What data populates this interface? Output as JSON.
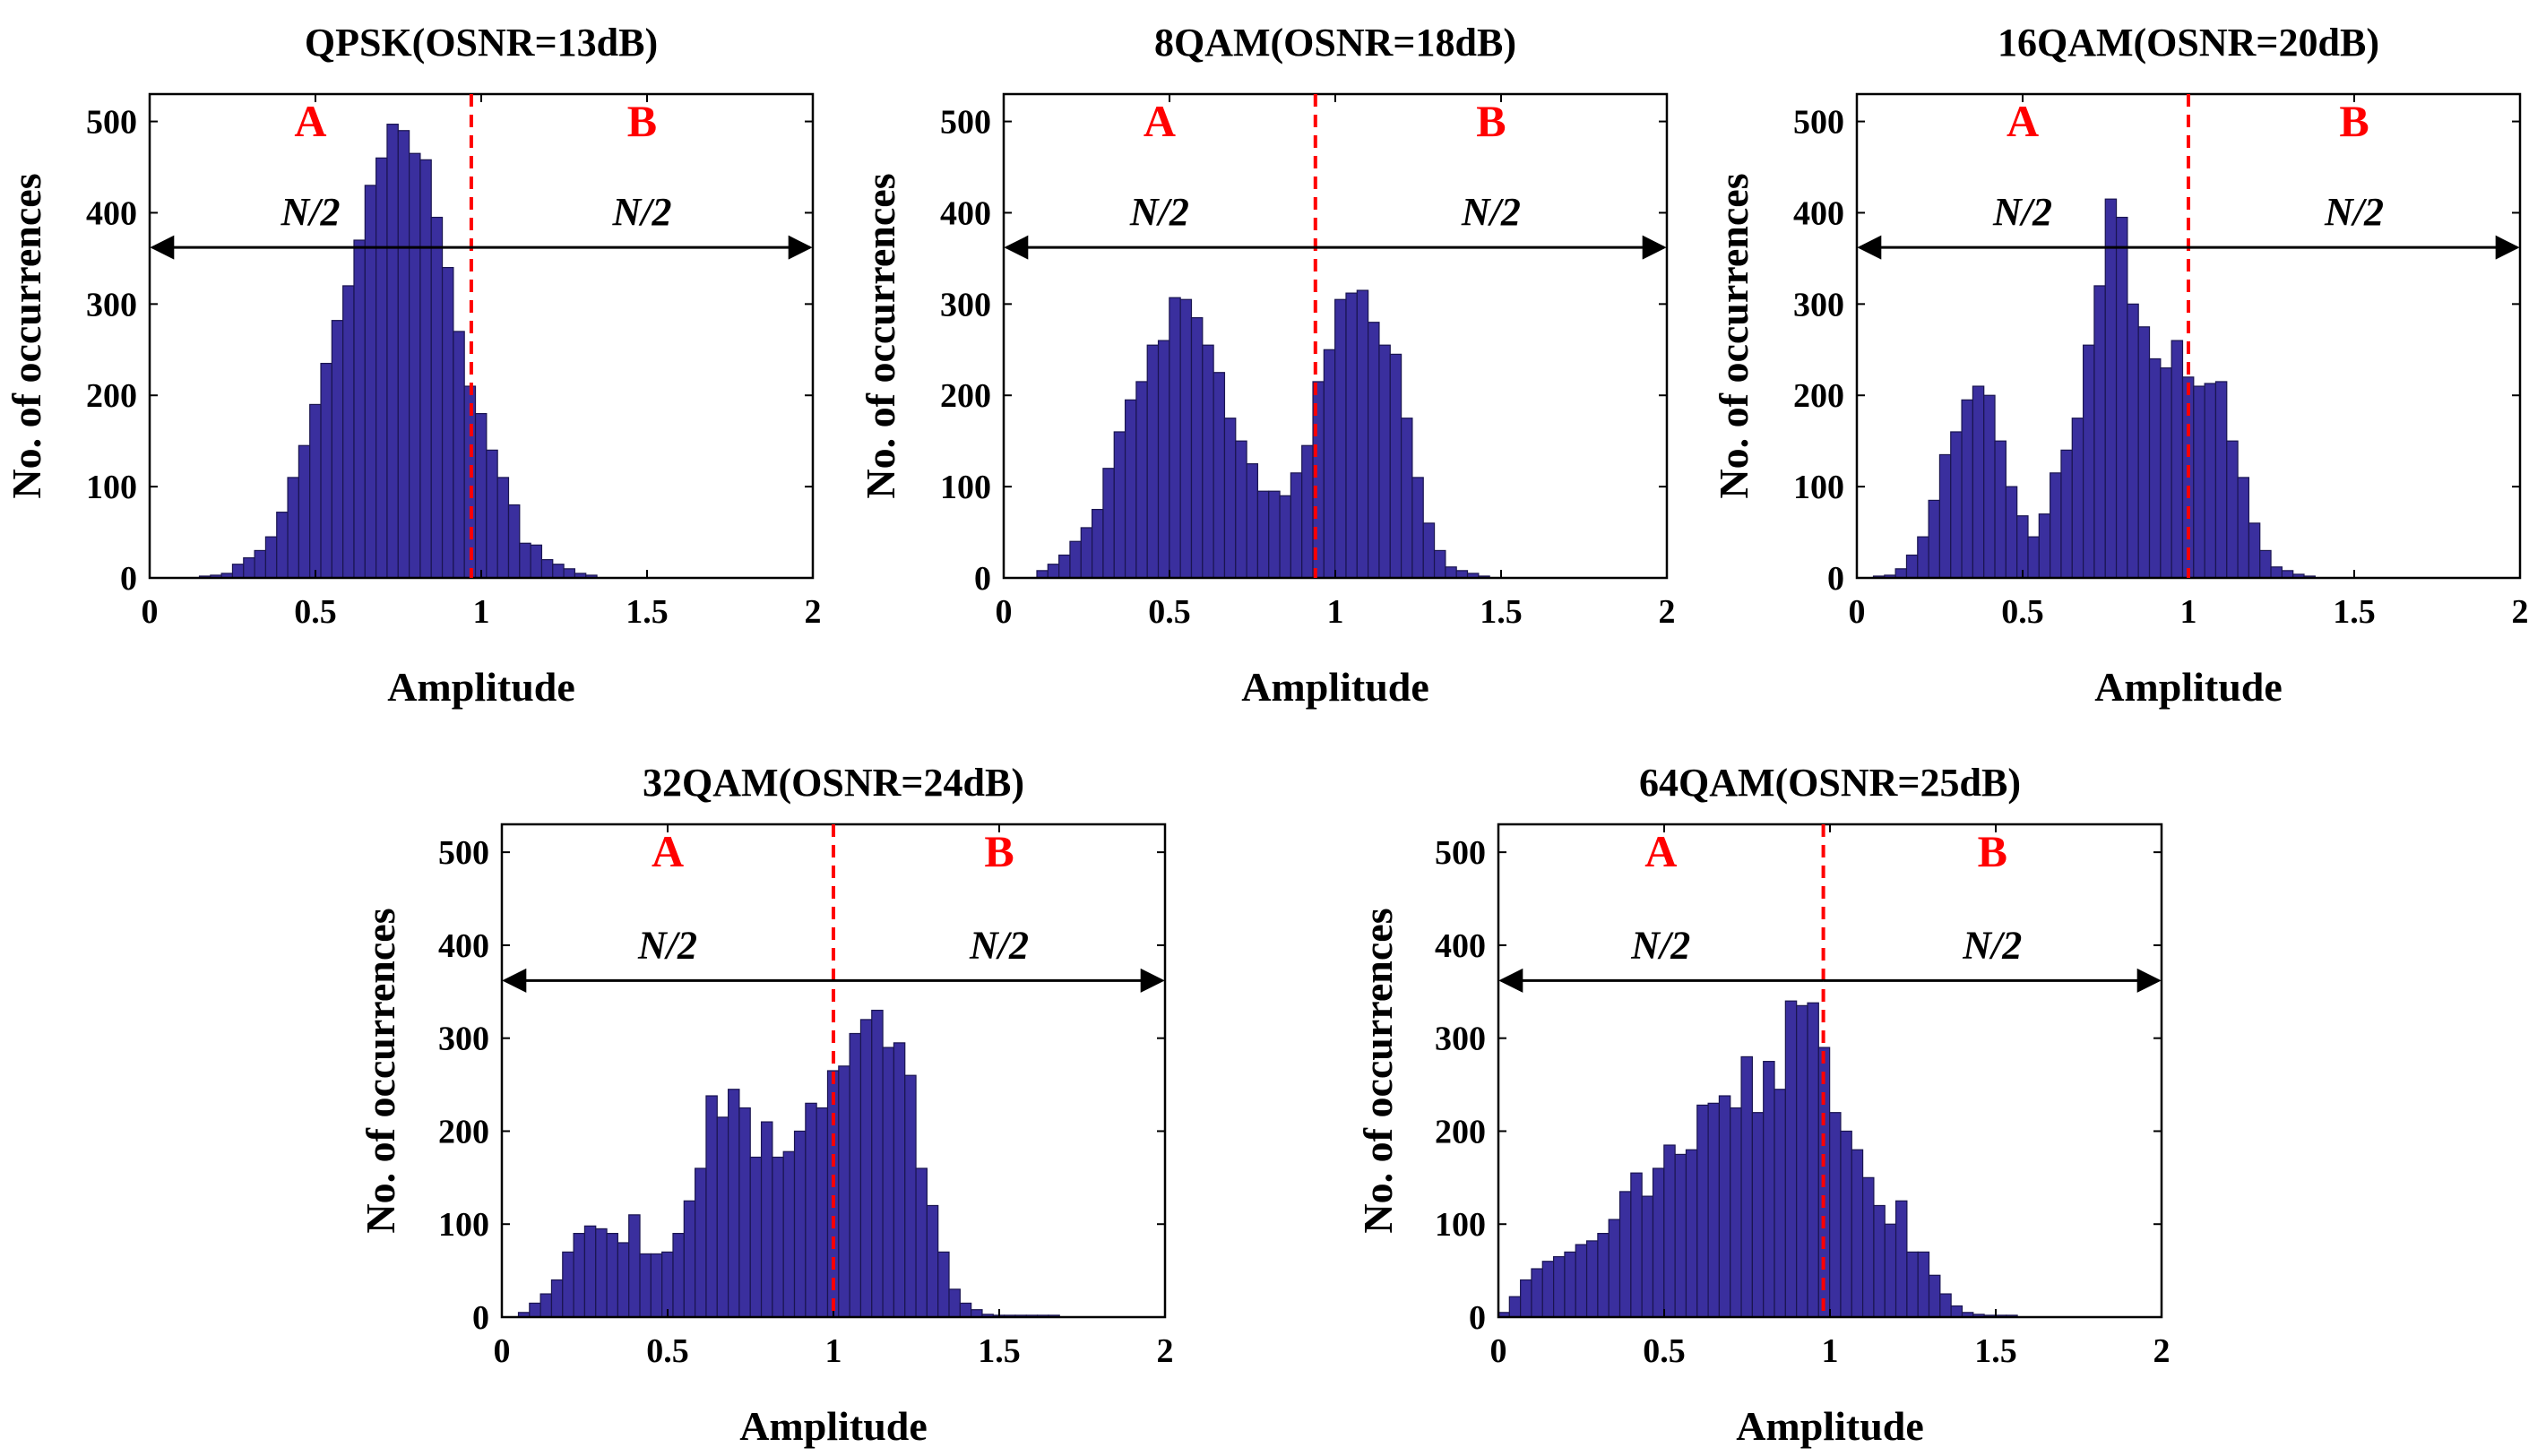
{
  "figure": {
    "name": "Amplitude histograms for different modulation formats"
  },
  "colors": {
    "bar": "#3a2f9e",
    "bar_edge": "#1a1550",
    "divider": "#ff0000",
    "region_label": "#ff0000",
    "axis": "#000000"
  },
  "chart_data": [
    {
      "type": "bar",
      "title": "QPSK(OSNR=13dB)",
      "xlabel": "Amplitude",
      "ylabel": "No. of occurrences",
      "xlim": [
        0,
        2
      ],
      "ylim": [
        0,
        530
      ],
      "xticks": [
        0,
        0.5,
        1,
        1.5,
        2
      ],
      "xtick_labels": [
        "0",
        "0.5",
        "1",
        "1.5",
        "2"
      ],
      "yticks": [
        0,
        100,
        200,
        300,
        400,
        500
      ],
      "ytick_labels": [
        "0",
        "100",
        "200",
        "300",
        "400",
        "500"
      ],
      "bin_start": 0.15,
      "bin_width": 0.0333,
      "values": [
        2,
        3,
        5,
        15,
        22,
        30,
        45,
        72,
        110,
        145,
        190,
        235,
        282,
        320,
        370,
        430,
        460,
        497,
        490,
        465,
        458,
        395,
        340,
        270,
        210,
        180,
        140,
        110,
        80,
        38,
        36,
        20,
        15,
        10,
        5,
        3
      ],
      "divider": 0.97,
      "region_labels": [
        "A",
        "B"
      ],
      "half_labels": [
        "N/2",
        "N/2"
      ],
      "arrow_y": 362
    },
    {
      "type": "bar",
      "title": "8QAM(OSNR=18dB)",
      "xlabel": "Amplitude",
      "ylabel": "No. of occurrences",
      "xlim": [
        0,
        2
      ],
      "ylim": [
        0,
        530
      ],
      "xticks": [
        0,
        0.5,
        1,
        1.5,
        2
      ],
      "xtick_labels": [
        "0",
        "0.5",
        "1",
        "1.5",
        "2"
      ],
      "yticks": [
        0,
        100,
        200,
        300,
        400,
        500
      ],
      "ytick_labels": [
        "0",
        "100",
        "200",
        "300",
        "400",
        "500"
      ],
      "bin_start": 0.1,
      "bin_width": 0.0333,
      "values": [
        8,
        15,
        25,
        40,
        55,
        75,
        120,
        160,
        195,
        215,
        255,
        260,
        307,
        305,
        285,
        255,
        225,
        175,
        150,
        125,
        95,
        95,
        90,
        115,
        145,
        215,
        250,
        305,
        312,
        315,
        280,
        255,
        245,
        175,
        110,
        60,
        30,
        12,
        8,
        5,
        2
      ],
      "divider": 0.94,
      "region_labels": [
        "A",
        "B"
      ],
      "half_labels": [
        "N/2",
        "N/2"
      ],
      "arrow_y": 362
    },
    {
      "type": "bar",
      "title": "16QAM(OSNR=20dB)",
      "xlabel": "Amplitude",
      "ylabel": "No. of occurrences",
      "xlim": [
        0,
        2
      ],
      "ylim": [
        0,
        530
      ],
      "xticks": [
        0,
        0.5,
        1,
        1.5,
        2
      ],
      "xtick_labels": [
        "0",
        "0.5",
        "1",
        "1.5",
        "2"
      ],
      "yticks": [
        0,
        100,
        200,
        300,
        400,
        500
      ],
      "ytick_labels": [
        "0",
        "100",
        "200",
        "300",
        "400",
        "500"
      ],
      "bin_start": 0.05,
      "bin_width": 0.0333,
      "values": [
        2,
        3,
        10,
        25,
        45,
        85,
        135,
        160,
        195,
        210,
        200,
        150,
        100,
        68,
        45,
        70,
        115,
        140,
        175,
        255,
        320,
        415,
        395,
        300,
        275,
        240,
        230,
        260,
        220,
        210,
        213,
        215,
        150,
        110,
        60,
        30,
        12,
        8,
        4,
        2
      ],
      "divider": 1.0,
      "region_labels": [
        "A",
        "B"
      ],
      "half_labels": [
        "N/2",
        "N/2"
      ],
      "arrow_y": 362
    },
    {
      "type": "bar",
      "title": "32QAM(OSNR=24dB)",
      "xlabel": "Amplitude",
      "ylabel": "No. of occurrences",
      "xlim": [
        0,
        2
      ],
      "ylim": [
        0,
        530
      ],
      "xticks": [
        0,
        0.5,
        1,
        1.5,
        2
      ],
      "xtick_labels": [
        "0",
        "0.5",
        "1",
        "1.5",
        "2"
      ],
      "yticks": [
        0,
        100,
        200,
        300,
        400,
        500
      ],
      "ytick_labels": [
        "0",
        "100",
        "200",
        "300",
        "400",
        "500"
      ],
      "bin_start": 0.05,
      "bin_width": 0.0333,
      "values": [
        5,
        15,
        25,
        40,
        70,
        90,
        98,
        95,
        90,
        80,
        110,
        68,
        68,
        70,
        90,
        125,
        160,
        238,
        215,
        245,
        225,
        172,
        210,
        172,
        178,
        200,
        230,
        225,
        265,
        270,
        305,
        320,
        330,
        290,
        295,
        260,
        160,
        120,
        70,
        30,
        15,
        8,
        3,
        2,
        2,
        2,
        2,
        2,
        2
      ],
      "divider": 1.0,
      "region_labels": [
        "A",
        "B"
      ],
      "half_labels": [
        "N/2",
        "N/2"
      ],
      "arrow_y": 362
    },
    {
      "type": "bar",
      "title": "64QAM(OSNR=25dB)",
      "xlabel": "Amplitude",
      "ylabel": "No. of occurrences",
      "xlim": [
        0,
        2
      ],
      "ylim": [
        0,
        530
      ],
      "xticks": [
        0,
        0.5,
        1,
        1.5,
        2
      ],
      "xtick_labels": [
        "0",
        "0.5",
        "1",
        "1.5",
        "2"
      ],
      "yticks": [
        0,
        100,
        200,
        300,
        400,
        500
      ],
      "ytick_labels": [
        "0",
        "100",
        "200",
        "300",
        "400",
        "500"
      ],
      "bin_start": 0.0,
      "bin_width": 0.0333,
      "values": [
        5,
        22,
        40,
        52,
        60,
        65,
        70,
        78,
        82,
        90,
        105,
        135,
        155,
        130,
        160,
        185,
        175,
        180,
        228,
        230,
        238,
        225,
        280,
        220,
        275,
        245,
        340,
        335,
        338,
        290,
        220,
        200,
        180,
        150,
        120,
        100,
        125,
        70,
        70,
        45,
        25,
        12,
        5,
        3,
        2,
        2,
        2
      ],
      "divider": 0.98,
      "region_labels": [
        "A",
        "B"
      ],
      "half_labels": [
        "N/2",
        "N/2"
      ],
      "arrow_y": 362
    }
  ]
}
